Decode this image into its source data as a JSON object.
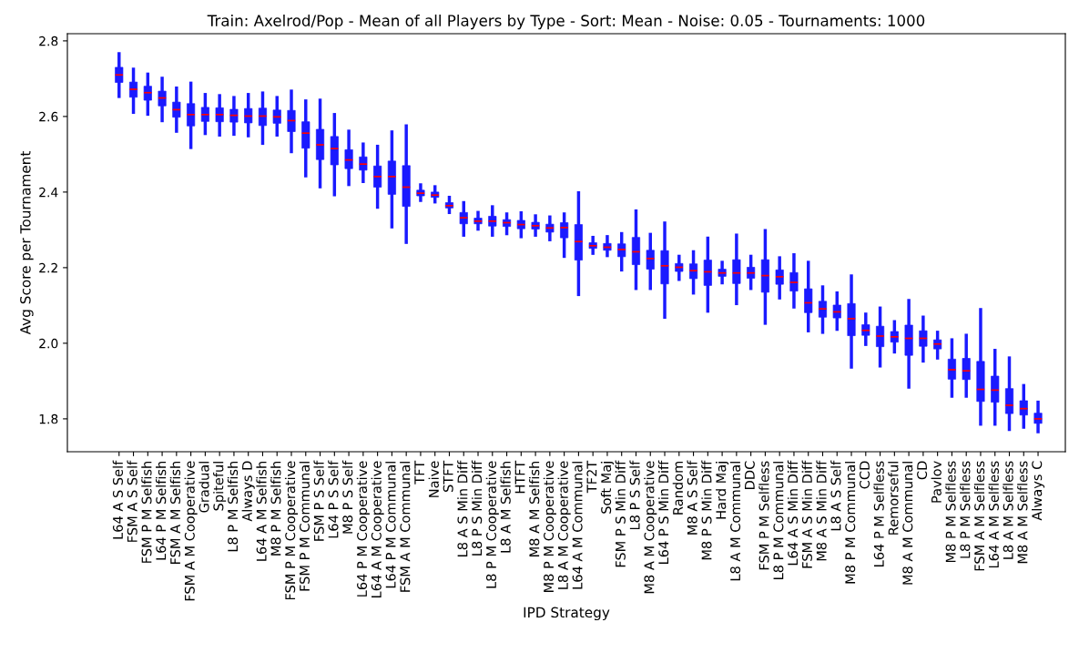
{
  "chart_data": {
    "type": "box",
    "title": "Train: Axelrod/Pop - Mean of all Players by Type - Sort: Mean - Noise: 0.05 - Tournaments: 1000",
    "xlabel": "IPD Strategy",
    "ylabel": "Avg Score per Tournament",
    "categories": [
      "L64 A S Self",
      "FSM A S Self",
      "FSM P M Selfish",
      "L64 P M Selfish",
      "FSM A M Selfish",
      "FSM A M Cooperative",
      "Gradual",
      "Spiteful",
      "L8 P M Selfish",
      "Always D",
      "L64 A M Selfish",
      "M8 P M Selfish",
      "FSM P M Cooperative",
      "FSM P M Communal",
      "FSM P S Self",
      "L64 P S Self",
      "M8 P S Self",
      "L64 P M Cooperative",
      "L64 A M Cooperative",
      "L64 P M Communal",
      "FSM A M Communal",
      "TFT",
      "Naive",
      "STFT",
      "L8 A S Min Diff",
      "L8 P S Min Diff",
      "L8 P M Cooperative",
      "L8 A M Selfish",
      "HTFT",
      "M8 A M Selfish",
      "M8 P M Cooperative",
      "L8 A M Cooperative",
      "L64 A M Communal",
      "TF2T",
      "Soft Maj",
      "FSM P S Min Diff",
      "L8 P S Self",
      "M8 A M Cooperative",
      "L64 P S Min Diff",
      "Random",
      "M8 A S Self",
      "M8 P S Min Diff",
      "Hard Maj",
      "L8 A M Communal",
      "DDC",
      "FSM P M Selfless",
      "L8 P M Communal",
      "L64 A S Min Diff",
      "FSM A S Min Diff",
      "M8 A S Min Diff",
      "L8 A S Self",
      "M8 P M Communal",
      "CCD",
      "L64 P M Selfless",
      "Remorseful",
      "M8 A M Communal",
      "CD",
      "Pavlov",
      "M8 P M Selfless",
      "L8 P M Selfless",
      "FSM A M Selfless",
      "L64 A M Selfless",
      "L8 A M Selfless",
      "M8 A M Selfless",
      "Always C"
    ],
    "color": "#1a1aff",
    "boxes": [
      {
        "low": 2.653,
        "q1": 2.69,
        "median": 2.71,
        "q3": 2.73,
        "high": 2.766
      },
      {
        "low": 2.611,
        "q1": 2.651,
        "median": 2.672,
        "q3": 2.691,
        "high": 2.725
      },
      {
        "low": 2.606,
        "q1": 2.643,
        "median": 2.663,
        "q3": 2.68,
        "high": 2.712
      },
      {
        "low": 2.589,
        "q1": 2.628,
        "median": 2.649,
        "q3": 2.667,
        "high": 2.701
      },
      {
        "low": 2.561,
        "q1": 2.598,
        "median": 2.618,
        "q3": 2.638,
        "high": 2.675
      },
      {
        "low": 2.518,
        "q1": 2.575,
        "median": 2.605,
        "q3": 2.634,
        "high": 2.688
      },
      {
        "low": 2.555,
        "q1": 2.587,
        "median": 2.605,
        "q3": 2.624,
        "high": 2.658
      },
      {
        "low": 2.551,
        "q1": 2.586,
        "median": 2.605,
        "q3": 2.623,
        "high": 2.655
      },
      {
        "low": 2.553,
        "q1": 2.585,
        "median": 2.603,
        "q3": 2.619,
        "high": 2.65
      },
      {
        "low": 2.549,
        "q1": 2.583,
        "median": 2.601,
        "q3": 2.621,
        "high": 2.658
      },
      {
        "low": 2.529,
        "q1": 2.576,
        "median": 2.601,
        "q3": 2.622,
        "high": 2.662
      },
      {
        "low": 2.551,
        "q1": 2.582,
        "median": 2.599,
        "q3": 2.617,
        "high": 2.65
      },
      {
        "low": 2.507,
        "q1": 2.56,
        "median": 2.589,
        "q3": 2.616,
        "high": 2.667
      },
      {
        "low": 2.443,
        "q1": 2.516,
        "median": 2.556,
        "q3": 2.586,
        "high": 2.641
      },
      {
        "low": 2.414,
        "q1": 2.486,
        "median": 2.525,
        "q3": 2.566,
        "high": 2.643
      },
      {
        "low": 2.393,
        "q1": 2.472,
        "median": 2.515,
        "q3": 2.547,
        "high": 2.605
      },
      {
        "low": 2.42,
        "q1": 2.462,
        "median": 2.485,
        "q3": 2.512,
        "high": 2.561
      },
      {
        "low": 2.428,
        "q1": 2.458,
        "median": 2.474,
        "q3": 2.493,
        "high": 2.527
      },
      {
        "low": 2.36,
        "q1": 2.413,
        "median": 2.441,
        "q3": 2.469,
        "high": 2.521
      },
      {
        "low": 2.308,
        "q1": 2.394,
        "median": 2.441,
        "q3": 2.482,
        "high": 2.559
      },
      {
        "low": 2.267,
        "q1": 2.362,
        "median": 2.413,
        "q3": 2.47,
        "high": 2.575
      },
      {
        "low": 2.378,
        "q1": 2.39,
        "median": 2.397,
        "q3": 2.405,
        "high": 2.419
      },
      {
        "low": 2.374,
        "q1": 2.386,
        "median": 2.392,
        "q3": 2.4,
        "high": 2.414
      },
      {
        "low": 2.346,
        "q1": 2.358,
        "median": 2.364,
        "q3": 2.372,
        "high": 2.386
      },
      {
        "low": 2.286,
        "q1": 2.316,
        "median": 2.332,
        "q3": 2.346,
        "high": 2.372
      },
      {
        "low": 2.302,
        "q1": 2.316,
        "median": 2.323,
        "q3": 2.331,
        "high": 2.346
      },
      {
        "low": 2.286,
        "q1": 2.31,
        "median": 2.323,
        "q3": 2.336,
        "high": 2.361
      },
      {
        "low": 2.29,
        "q1": 2.309,
        "median": 2.319,
        "q3": 2.327,
        "high": 2.342
      },
      {
        "low": 2.282,
        "q1": 2.303,
        "median": 2.314,
        "q3": 2.325,
        "high": 2.345
      },
      {
        "low": 2.286,
        "q1": 2.302,
        "median": 2.311,
        "q3": 2.32,
        "high": 2.337
      },
      {
        "low": 2.274,
        "q1": 2.294,
        "median": 2.305,
        "q3": 2.315,
        "high": 2.334
      },
      {
        "low": 2.23,
        "q1": 2.279,
        "median": 2.306,
        "q3": 2.319,
        "high": 2.342
      },
      {
        "low": 2.129,
        "q1": 2.22,
        "median": 2.269,
        "q3": 2.314,
        "high": 2.398
      },
      {
        "low": 2.238,
        "q1": 2.251,
        "median": 2.258,
        "q3": 2.266,
        "high": 2.28
      },
      {
        "low": 2.232,
        "q1": 2.246,
        "median": 2.254,
        "q3": 2.264,
        "high": 2.282
      },
      {
        "low": 2.194,
        "q1": 2.229,
        "median": 2.248,
        "q3": 2.263,
        "high": 2.29
      },
      {
        "low": 2.145,
        "q1": 2.208,
        "median": 2.242,
        "q3": 2.28,
        "high": 2.35
      },
      {
        "low": 2.145,
        "q1": 2.196,
        "median": 2.224,
        "q3": 2.246,
        "high": 2.288
      },
      {
        "low": 2.069,
        "q1": 2.157,
        "median": 2.205,
        "q3": 2.245,
        "high": 2.318
      },
      {
        "low": 2.169,
        "q1": 2.19,
        "median": 2.201,
        "q3": 2.211,
        "high": 2.23
      },
      {
        "low": 2.133,
        "q1": 2.171,
        "median": 2.192,
        "q3": 2.21,
        "high": 2.242
      },
      {
        "low": 2.085,
        "q1": 2.153,
        "median": 2.189,
        "q3": 2.22,
        "high": 2.278
      },
      {
        "low": 2.16,
        "q1": 2.177,
        "median": 2.186,
        "q3": 2.196,
        "high": 2.214
      },
      {
        "low": 2.105,
        "q1": 2.158,
        "median": 2.186,
        "q3": 2.221,
        "high": 2.286
      },
      {
        "low": 2.145,
        "q1": 2.172,
        "median": 2.186,
        "q3": 2.201,
        "high": 2.23
      },
      {
        "low": 2.053,
        "q1": 2.135,
        "median": 2.179,
        "q3": 2.221,
        "high": 2.298
      },
      {
        "low": 2.12,
        "q1": 2.156,
        "median": 2.176,
        "q3": 2.194,
        "high": 2.226
      },
      {
        "low": 2.096,
        "q1": 2.138,
        "median": 2.161,
        "q3": 2.187,
        "high": 2.234
      },
      {
        "low": 2.033,
        "q1": 2.081,
        "median": 2.107,
        "q3": 2.144,
        "high": 2.214
      },
      {
        "low": 2.029,
        "q1": 2.069,
        "median": 2.091,
        "q3": 2.111,
        "high": 2.149
      },
      {
        "low": 2.037,
        "q1": 2.067,
        "median": 2.083,
        "q3": 2.101,
        "high": 2.133
      },
      {
        "low": 1.937,
        "q1": 2.02,
        "median": 2.065,
        "q3": 2.105,
        "high": 2.178
      },
      {
        "low": 1.997,
        "q1": 2.021,
        "median": 2.034,
        "q3": 2.049,
        "high": 2.077
      },
      {
        "low": 1.94,
        "q1": 1.991,
        "median": 2.019,
        "q3": 2.045,
        "high": 2.093
      },
      {
        "low": 1.977,
        "q1": 2.003,
        "median": 2.017,
        "q3": 2.031,
        "high": 2.057
      },
      {
        "low": 1.884,
        "q1": 1.968,
        "median": 2.013,
        "q3": 2.048,
        "high": 2.113
      },
      {
        "low": 1.953,
        "q1": 1.992,
        "median": 2.013,
        "q3": 2.033,
        "high": 2.069
      },
      {
        "low": 1.961,
        "q1": 1.985,
        "median": 1.998,
        "q3": 2.009,
        "high": 2.029
      },
      {
        "low": 1.86,
        "q1": 1.905,
        "median": 1.93,
        "q3": 1.958,
        "high": 2.009
      },
      {
        "low": 1.86,
        "q1": 1.904,
        "median": 1.927,
        "q3": 1.96,
        "high": 2.021
      },
      {
        "low": 1.786,
        "q1": 1.846,
        "median": 1.878,
        "q3": 1.952,
        "high": 2.089
      },
      {
        "low": 1.786,
        "q1": 1.844,
        "median": 1.876,
        "q3": 1.913,
        "high": 1.981
      },
      {
        "low": 1.772,
        "q1": 1.814,
        "median": 1.836,
        "q3": 1.88,
        "high": 1.961
      },
      {
        "low": 1.778,
        "q1": 1.81,
        "median": 1.827,
        "q3": 1.848,
        "high": 1.888
      },
      {
        "low": 1.766,
        "q1": 1.788,
        "median": 1.8,
        "q3": 1.815,
        "high": 1.844
      }
    ],
    "ylim": [
      1.713,
      2.819
    ],
    "yticks": [
      {
        "value": 1.8,
        "label": "1.8"
      },
      {
        "value": 2.0,
        "label": "2.0"
      },
      {
        "value": 2.2,
        "label": "2.2"
      },
      {
        "value": 2.4,
        "label": "2.4"
      },
      {
        "value": 2.6,
        "label": "2.6"
      },
      {
        "value": 2.8,
        "label": "2.8"
      }
    ]
  }
}
